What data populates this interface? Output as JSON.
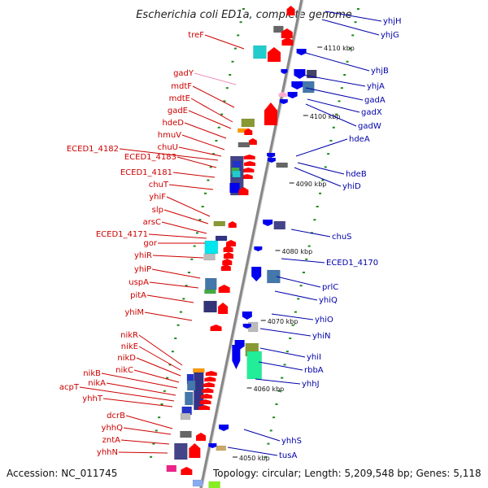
{
  "title": "Escherichia coli ED1a, complete genome",
  "accession": "Accession: NC_011745",
  "topology": "Topology: circular; Length: 5,209,548 bp; Genes: 5,118",
  "colors": {
    "forward": "#ff0000",
    "reverse": "#0000ee",
    "left_label": "#cc0000",
    "right_label": "#0000aa",
    "pink_label": "#f08cc0",
    "backbone": "#909090",
    "tick": "#1a8a1a"
  },
  "scale": [
    "4110 kbp",
    "4100 kbp",
    "4090 kbp",
    "4080 kbp",
    "4070 kbp",
    "4060 kbp",
    "4050 kbp"
  ],
  "left_labels": [
    "treF",
    "gadY",
    "mdtF",
    "mdtE",
    "gadE",
    "hdeD",
    "hmuV",
    "chuU",
    "ECED1_4182",
    "ECED1_4183",
    "ECED1_4181",
    "chuT",
    "yhiF",
    "slp",
    "arsC",
    "ECED1_4171",
    "gor",
    "yhiR",
    "yhiP",
    "uspA",
    "pitA",
    "yhiM",
    "nikR",
    "nikE",
    "nikD",
    "nikC",
    "nikB",
    "nikA",
    "acpT",
    "yhhT",
    "dcrB",
    "yhhQ",
    "zntA",
    "yhhN"
  ],
  "right_labels": [
    "yhjH",
    "yhjG",
    "yhjB",
    "yhjA",
    "gadA",
    "gadX",
    "gadW",
    "hdeA",
    "hdeB",
    "yhiD",
    "chuS",
    "ECED1_4170",
    "prlC",
    "yhiQ",
    "yhiO",
    "yhiN",
    "yhiI",
    "rbbA",
    "yhhJ",
    "yhhS",
    "tusA"
  ]
}
